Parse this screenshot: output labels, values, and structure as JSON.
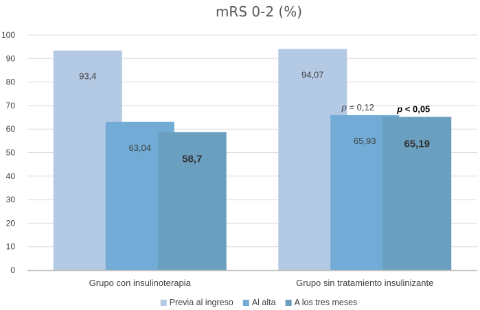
{
  "chart_data": {
    "type": "bar",
    "title": "mRS 0-2 (%)",
    "categories": [
      "Grupo con insulinoterapia",
      "Grupo sin tratamiento insulinizante"
    ],
    "series": [
      {
        "name": "Previa al ingreso",
        "values": [
          93.4,
          94.07
        ],
        "labels": [
          "93,4",
          "94,07"
        ],
        "color": "#b4c9e3",
        "bold": [
          false,
          false
        ]
      },
      {
        "name": "Al alta",
        "values": [
          63.04,
          65.93
        ],
        "labels": [
          "63,04",
          "65,93"
        ],
        "color": "#72acd6",
        "bold": [
          false,
          false
        ]
      },
      {
        "name": "A los tres meses",
        "values": [
          58.7,
          65.19
        ],
        "labels": [
          "58,7",
          "65,19"
        ],
        "color": "#6a9fbf",
        "bold": [
          true,
          true
        ]
      }
    ],
    "ylim": [
      0,
      100
    ],
    "yticks": [
      0,
      10,
      20,
      30,
      40,
      50,
      60,
      70,
      80,
      90,
      100
    ],
    "grid": true,
    "legend_position": "bottom",
    "xlabel": "",
    "ylabel": "",
    "annotations": [
      {
        "category": 1,
        "series": 1,
        "prefix": "p",
        "text": " = 0,12",
        "bold": false
      },
      {
        "category": 1,
        "series": 2,
        "prefix": "p",
        "text": " < 0,05",
        "bold": true
      }
    ]
  }
}
